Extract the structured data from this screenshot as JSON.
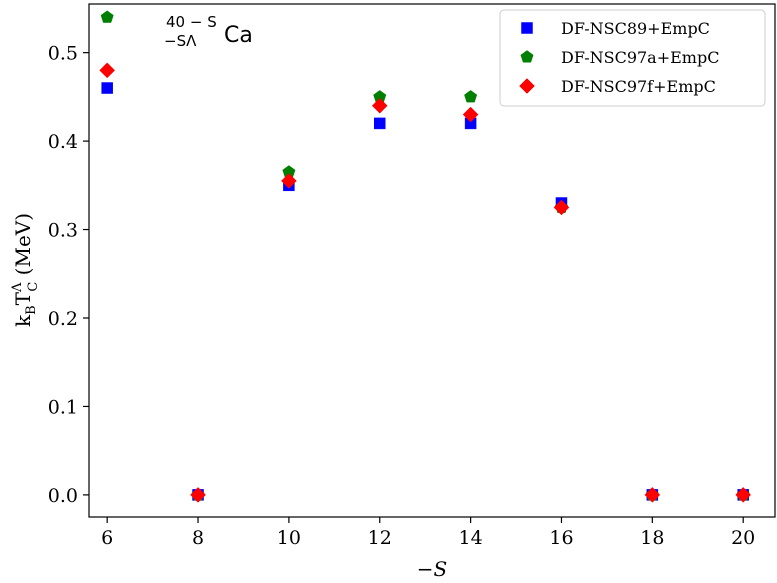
{
  "chart_data": {
    "type": "scatter",
    "xlabel": "−S",
    "ylabel_main": "k",
    "ylabel_sub_b": "B",
    "ylabel_main2": "T",
    "ylabel_sup": "Λ",
    "ylabel_sub_c": "C",
    "ylabel_unit": " (MeV)",
    "annotation": {
      "mass_sup": "40 − S",
      "sub": "−SΛ",
      "element": "Ca"
    },
    "xlim": [
      5.6,
      20.7
    ],
    "ylim": [
      -0.025,
      0.555
    ],
    "xticks": [
      6,
      8,
      10,
      12,
      14,
      16,
      18,
      20
    ],
    "xtick_labels": [
      "6",
      "8",
      "10",
      "12",
      "14",
      "16",
      "18",
      "20"
    ],
    "yticks": [
      0.0,
      0.1,
      0.2,
      0.3,
      0.4,
      0.5
    ],
    "ytick_labels": [
      "0.0",
      "0.1",
      "0.2",
      "0.3",
      "0.4",
      "0.5"
    ],
    "grid": false,
    "legend_position": "top-right",
    "series": [
      {
        "name": "DF-NSC89+EmpC",
        "color": "#0000ff",
        "marker": "square",
        "x": [
          6,
          8,
          10,
          12,
          14,
          16,
          18,
          20
        ],
        "y": [
          0.46,
          0.0,
          0.35,
          0.42,
          0.42,
          0.33,
          0.0,
          0.0
        ]
      },
      {
        "name": "DF-NSC97a+EmpC",
        "color": "#007f00",
        "marker": "pentagon",
        "x": [
          6,
          8,
          10,
          12,
          14,
          16,
          18,
          20
        ],
        "y": [
          0.54,
          0.0,
          0.365,
          0.45,
          0.45,
          0.325,
          0.0,
          0.0
        ]
      },
      {
        "name": "DF-NSC97f+EmpC",
        "color": "#ff0000",
        "marker": "diamond",
        "x": [
          6,
          8,
          10,
          12,
          14,
          16,
          18,
          20
        ],
        "y": [
          0.48,
          0.0,
          0.355,
          0.44,
          0.43,
          0.325,
          0.0,
          0.0
        ]
      }
    ]
  }
}
